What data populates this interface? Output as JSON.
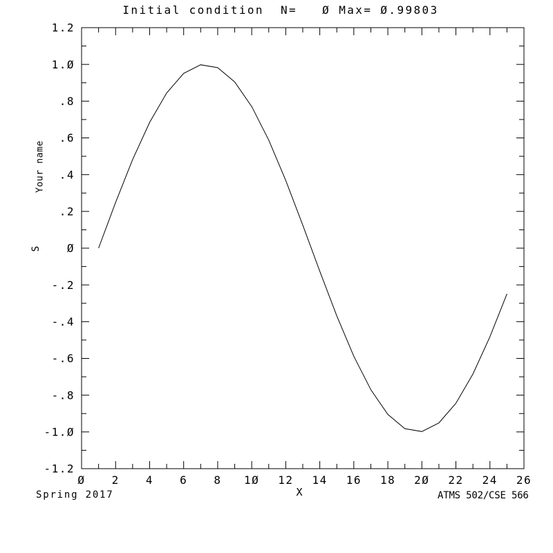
{
  "chart_data": {
    "type": "line",
    "title": "Initial condition  N=   Ø Max= Ø.99803",
    "xlabel": "X",
    "ylabel": "S",
    "y_axis_text": "Your name",
    "xlim": [
      0,
      26
    ],
    "ylim": [
      -1.2,
      1.2
    ],
    "grid": false,
    "line_color": "#000000",
    "background_color": "#ffffff",
    "x": [
      1,
      2,
      3,
      4,
      5,
      6,
      7,
      8,
      9,
      10,
      11,
      12,
      13,
      14,
      15,
      16,
      17,
      18,
      19,
      20,
      21,
      22,
      23,
      24,
      25
    ],
    "y": [
      0.0,
      0.24869,
      0.48175,
      0.68455,
      0.84433,
      0.95106,
      0.99803,
      0.98229,
      0.90483,
      0.77051,
      0.58779,
      0.36812,
      0.12533,
      -0.12533,
      -0.36812,
      -0.58779,
      -0.77051,
      -0.90483,
      -0.98229,
      -0.99803,
      -0.95106,
      -0.84433,
      -0.68455,
      -0.48175,
      -0.24869
    ],
    "x_tick_values": [
      0,
      2,
      4,
      6,
      8,
      10,
      12,
      14,
      16,
      18,
      20,
      22,
      24,
      26
    ],
    "x_tick_labels": [
      "Ø",
      "2",
      "4",
      "6",
      "8",
      "1Ø",
      "12",
      "14",
      "16",
      "18",
      "2Ø",
      "22",
      "24",
      "26"
    ],
    "x_minor_step": 1,
    "y_tick_values": [
      1.2,
      1.0,
      0.8,
      0.6,
      0.4,
      0.2,
      0.0,
      -0.2,
      -0.4,
      -0.6,
      -0.8,
      -1.0,
      -1.2
    ],
    "y_tick_labels": [
      "1.2",
      "1.Ø",
      ".8",
      ".6",
      ".4",
      ".2",
      "Ø",
      "-.2",
      "-.4",
      "-.6",
      "-.8",
      "-1.Ø",
      "-1.2"
    ],
    "y_minor_step": 0.1
  },
  "footer": {
    "left": "Spring 2017",
    "right": "ATMS 502/CSE 566"
  }
}
